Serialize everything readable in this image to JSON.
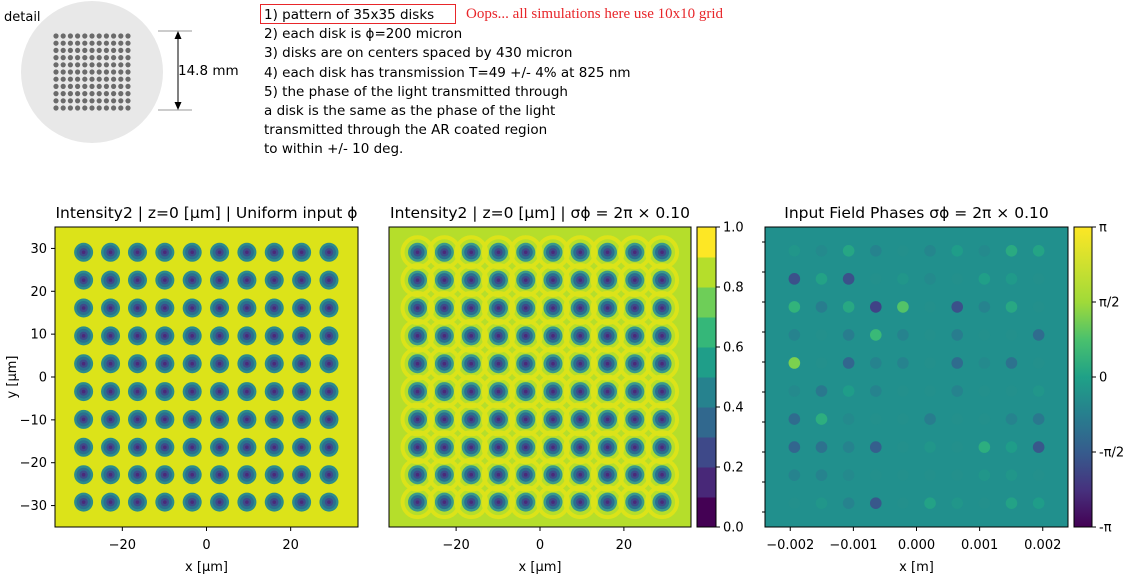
{
  "detail": {
    "label": "detail",
    "dimension_label": "14.8 mm"
  },
  "spec": {
    "items": [
      "1) pattern of 35x35  disks",
      "2) each disk is ϕ=200 micron",
      "3) disks are on centers spaced by 430 micron",
      "4) each disk has transmission  T=49 +/- 4% at 825 nm",
      "5) the phase of the light transmitted through",
      "a disk is the same as the phase of the light",
      "transmitted through the AR coated region",
      "to within +/- 10 deg."
    ],
    "note": "Oops... all simulations here use 10x10 grid"
  },
  "colors": {
    "viridis_yellow": "#dce319",
    "viridis_teal": "#21908d",
    "viridis_purple": "#440154",
    "annotation_red": "#e8262a",
    "detail_disk": "#e8e8e8",
    "detail_dot": "#6b6b6b"
  },
  "chart_data": [
    {
      "type": "heatmap",
      "title": "Intensity2 | z=0 [μm] | Uniform input ϕ",
      "xlabel": "x [μm]",
      "ylabel": "y [μm]",
      "xlim": [
        -36,
        36
      ],
      "ylim": [
        -35,
        35
      ],
      "xticks": [
        -20,
        0,
        20
      ],
      "xtick_labels": [
        "−20",
        "0",
        "20"
      ],
      "yticks": [
        30,
        20,
        10,
        0,
        -10,
        -20,
        -30
      ],
      "ytick_labels": [
        "30",
        "20",
        "10",
        "0",
        "−10",
        "−20",
        "−30"
      ],
      "grid_rows": 10,
      "grid_cols": 10,
      "disk_positions": [
        -29.2,
        -22.8,
        -16.4,
        -9.9,
        -3.4,
        3.1,
        9.6,
        16.1,
        22.6,
        29.1
      ]
    },
    {
      "type": "heatmap",
      "title": "Intensity2 | z=0 [μm] | σϕ = 2π × 0.10",
      "xlabel": "x [μm]",
      "ylabel": "",
      "xlim": [
        -36,
        36
      ],
      "ylim": [
        -35,
        35
      ],
      "xticks": [
        -20,
        0,
        20
      ],
      "xtick_labels": [
        "−20",
        "0",
        "20"
      ],
      "grid_rows": 10,
      "grid_cols": 10,
      "colorbar": {
        "range": [
          0.0,
          1.0
        ],
        "levels": 10,
        "tick_values": [
          1.0,
          0.8,
          0.6,
          0.4,
          0.2,
          0.0
        ],
        "tick_labels": [
          "1.0",
          "0.8",
          "0.6",
          "0.4",
          "0.2",
          "0.0"
        ]
      }
    },
    {
      "type": "heatmap",
      "title": "Input Field Phases σϕ = 2π × 0.10",
      "xlabel": "x [m]",
      "ylabel": "",
      "xlim": [
        -0.0024,
        0.0024
      ],
      "ylim": [
        -0.0023,
        0.0023
      ],
      "xticks": [
        -0.002,
        -0.001,
        0.0,
        0.001,
        0.002
      ],
      "xtick_labels": [
        "−0.002",
        "−0.001",
        "0.000",
        "0.001",
        "0.002"
      ],
      "grid_rows": 10,
      "grid_cols": 10,
      "phase_grid": [
        [
          0.05,
          -0.05,
          0.18,
          -0.1,
          0.0,
          -0.08,
          0.1,
          -0.05,
          0.22,
          0.16
        ],
        [
          -0.5,
          0.15,
          -0.5,
          0.0,
          0.05,
          -0.05,
          0.0,
          0.12,
          0.08,
          0.0
        ],
        [
          0.3,
          -0.15,
          0.2,
          -0.6,
          0.45,
          0.0,
          -0.5,
          -0.1,
          0.2,
          0.0
        ],
        [
          -0.1,
          0.0,
          -0.15,
          0.35,
          -0.1,
          0.0,
          -0.15,
          0.0,
          0.0,
          -0.3
        ],
        [
          0.6,
          0.0,
          -0.35,
          -0.1,
          -0.1,
          0.0,
          -0.3,
          -0.05,
          -0.25,
          0.0
        ],
        [
          -0.05,
          -0.2,
          0.1,
          -0.1,
          0.0,
          0.0,
          -0.1,
          0.0,
          0.0,
          0.05
        ],
        [
          -0.3,
          0.25,
          -0.05,
          0.0,
          0.0,
          -0.15,
          0.0,
          0.0,
          -0.1,
          -0.2
        ],
        [
          -0.35,
          -0.25,
          -0.1,
          -0.4,
          0.0,
          0.05,
          0.0,
          0.25,
          0.1,
          -0.45
        ],
        [
          -0.1,
          -0.1,
          -0.05,
          0.0,
          0.0,
          0.0,
          0.0,
          0.05,
          0.05,
          0.0
        ],
        [
          0.0,
          0.05,
          -0.1,
          -0.45,
          0.0,
          0.15,
          0.05,
          0.0,
          0.15,
          0.1
        ]
      ],
      "colorbar": {
        "range": [
          "-π",
          "π"
        ],
        "tick_labels": [
          "π",
          "π/2",
          "0",
          "-π/2",
          "-π"
        ]
      }
    }
  ]
}
